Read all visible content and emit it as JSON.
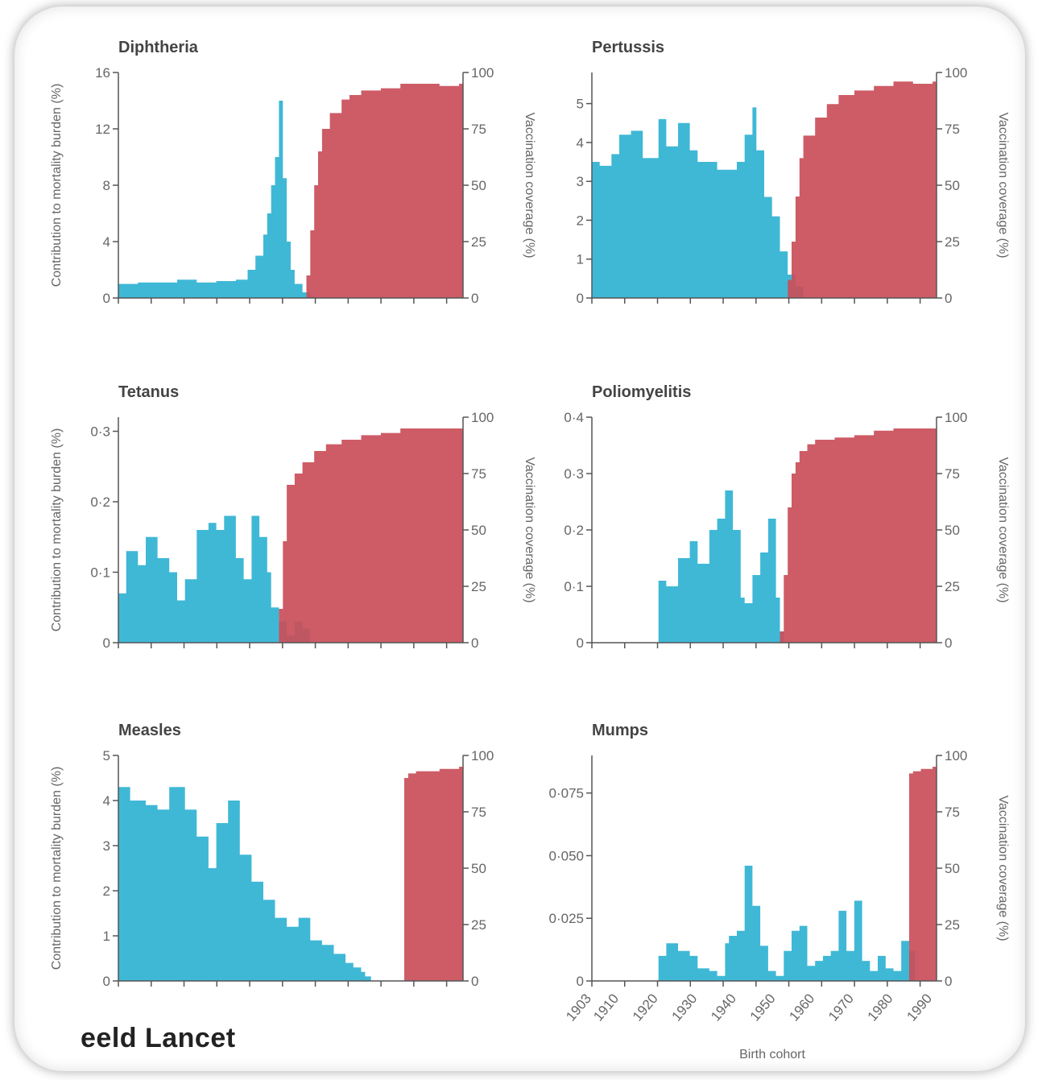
{
  "source_mark": "eeld Lancet",
  "chart_data": [
    {
      "type": "bar",
      "title": "Diphtheria",
      "ylabel_left": "Contribution to mortality burden (%)",
      "ylabel_right": "Vaccination coverage (%)",
      "ylim_left": [
        0,
        16
      ],
      "yticks_left": [
        "0",
        "4",
        "8",
        "12",
        "16"
      ],
      "ylim_right": [
        0,
        100
      ],
      "yticks_right": [
        "0",
        "25",
        "50",
        "75",
        "100"
      ],
      "series": [
        {
          "name": "Contribution to mortality burden",
          "color": "#3fb8d6",
          "x": [
            1903,
            1908,
            1913,
            1918,
            1923,
            1928,
            1933,
            1936,
            1938,
            1940,
            1941,
            1942,
            1943,
            1944,
            1945,
            1946,
            1947,
            1948,
            1950,
            1952,
            1953
          ],
          "values": [
            1.0,
            1.1,
            1.1,
            1.3,
            1.1,
            1.2,
            1.3,
            2.0,
            3.0,
            4.5,
            6.0,
            8.0,
            10.0,
            14.0,
            8.5,
            4.0,
            2.0,
            1.0,
            0.4,
            0.1,
            0.0
          ]
        },
        {
          "name": "Vaccination coverage",
          "color": "#c9505a",
          "x": [
            1951,
            1952,
            1953,
            1954,
            1955,
            1957,
            1960,
            1962,
            1965,
            1970,
            1975,
            1980,
            1985,
            1990
          ],
          "values": [
            10,
            30,
            50,
            65,
            75,
            82,
            88,
            90,
            92,
            93,
            95,
            95,
            94,
            95
          ]
        }
      ]
    },
    {
      "type": "bar",
      "title": "Pertussis",
      "ylabel_right": "Vaccination coverage (%)",
      "ylim_left": [
        0,
        5.8
      ],
      "yticks_left": [
        "0",
        "1",
        "2",
        "3",
        "4",
        "5"
      ],
      "ylim_right": [
        0,
        100
      ],
      "yticks_right": [
        "0",
        "25",
        "50",
        "75",
        "100"
      ],
      "series": [
        {
          "name": "Contribution to mortality burden",
          "color": "#3fb8d6",
          "x": [
            1903,
            1905,
            1908,
            1910,
            1913,
            1916,
            1920,
            1922,
            1925,
            1928,
            1930,
            1935,
            1940,
            1942,
            1944,
            1945,
            1947,
            1949,
            1951,
            1953,
            1955,
            1957
          ],
          "values": [
            3.5,
            3.4,
            3.7,
            4.2,
            4.3,
            3.6,
            4.6,
            3.9,
            4.5,
            3.8,
            3.5,
            3.3,
            3.5,
            4.2,
            4.9,
            3.8,
            2.6,
            2.1,
            1.2,
            0.6,
            0.3,
            0.0
          ]
        },
        {
          "name": "Vaccination coverage",
          "color": "#c9505a",
          "x": [
            1953,
            1954,
            1955,
            1956,
            1957,
            1960,
            1963,
            1966,
            1970,
            1975,
            1980,
            1985,
            1990
          ],
          "values": [
            8,
            25,
            45,
            62,
            72,
            80,
            86,
            90,
            92,
            94,
            96,
            95,
            96
          ]
        }
      ]
    },
    {
      "type": "bar",
      "title": "Tetanus",
      "ylabel_left": "Contribution to mortality burden (%)",
      "ylabel_right": "Vaccination coverage (%)",
      "ylim_left": [
        0,
        0.32
      ],
      "yticks_left": [
        "0",
        "0·1",
        "0·2",
        "0·3"
      ],
      "ylim_right": [
        0,
        100
      ],
      "yticks_right": [
        "0",
        "25",
        "50",
        "75",
        "100"
      ],
      "series": [
        {
          "name": "Contribution to mortality burden",
          "color": "#3fb8d6",
          "x": [
            1903,
            1905,
            1908,
            1910,
            1913,
            1916,
            1918,
            1920,
            1923,
            1926,
            1928,
            1930,
            1933,
            1935,
            1937,
            1939,
            1941,
            1942,
            1944,
            1946,
            1948,
            1950,
            1952,
            1953
          ],
          "values": [
            0.07,
            0.13,
            0.11,
            0.15,
            0.12,
            0.1,
            0.06,
            0.09,
            0.16,
            0.17,
            0.16,
            0.18,
            0.12,
            0.09,
            0.18,
            0.15,
            0.1,
            0.05,
            0.03,
            0.01,
            0.03,
            0.02,
            0.0,
            0.0
          ]
        },
        {
          "name": "Vaccination coverage",
          "color": "#c9505a",
          "x": [
            1944,
            1945,
            1946,
            1948,
            1950,
            1953,
            1956,
            1960,
            1965,
            1970,
            1975,
            1980,
            1985,
            1990
          ],
          "values": [
            15,
            45,
            70,
            75,
            80,
            85,
            88,
            90,
            92,
            93,
            95,
            95,
            95,
            95
          ]
        }
      ]
    },
    {
      "type": "bar",
      "title": "Poliomyelitis",
      "ylabel_right": "Vaccination coverage (%)",
      "ylim_left": [
        0,
        0.4
      ],
      "yticks_left": [
        "0",
        "0·1",
        "0·2",
        "0·3",
        "0·4"
      ],
      "ylim_right": [
        0,
        100
      ],
      "yticks_right": [
        "0",
        "25",
        "50",
        "75",
        "100"
      ],
      "series": [
        {
          "name": "Contribution to mortality burden",
          "color": "#3fb8d6",
          "x": [
            1903,
            1910,
            1918,
            1920,
            1922,
            1925,
            1928,
            1930,
            1933,
            1935,
            1937,
            1939,
            1941,
            1942,
            1944,
            1946,
            1948,
            1950,
            1951,
            1952
          ],
          "values": [
            0.0,
            0.0,
            0.0,
            0.11,
            0.1,
            0.15,
            0.18,
            0.14,
            0.2,
            0.22,
            0.27,
            0.2,
            0.08,
            0.07,
            0.12,
            0.16,
            0.22,
            0.08,
            0.02,
            0.0
          ]
        },
        {
          "name": "Vaccination coverage",
          "color": "#c9505a",
          "x": [
            1951,
            1952,
            1953,
            1954,
            1955,
            1956,
            1958,
            1960,
            1965,
            1970,
            1975,
            1980,
            1985,
            1990
          ],
          "values": [
            5,
            30,
            60,
            75,
            80,
            85,
            88,
            90,
            91,
            92,
            94,
            95,
            95,
            95
          ]
        }
      ]
    },
    {
      "type": "bar",
      "title": "Measles",
      "ylabel_left": "Contribution to mortality burden (%)",
      "ylim_left": [
        0,
        5
      ],
      "yticks_left": [
        "0",
        "1",
        "2",
        "3",
        "4",
        "5"
      ],
      "ylim_right": [
        0,
        100
      ],
      "yticks_right": [
        "0",
        "25",
        "50",
        "75",
        "100"
      ],
      "series": [
        {
          "name": "Contribution to mortality burden",
          "color": "#3fb8d6",
          "x": [
            1903,
            1906,
            1910,
            1913,
            1916,
            1920,
            1923,
            1926,
            1928,
            1931,
            1934,
            1937,
            1940,
            1943,
            1946,
            1949,
            1952,
            1955,
            1958,
            1961,
            1963,
            1965,
            1966
          ],
          "values": [
            4.3,
            4.0,
            3.9,
            3.8,
            4.3,
            3.8,
            3.2,
            2.5,
            3.5,
            4.0,
            2.8,
            2.2,
            1.8,
            1.4,
            1.2,
            1.4,
            0.9,
            0.8,
            0.6,
            0.4,
            0.3,
            0.2,
            0.1
          ]
        },
        {
          "name": "Vaccination coverage",
          "color": "#c9505a",
          "x": [
            1976,
            1977,
            1979,
            1982,
            1985,
            1988,
            1990
          ],
          "values": [
            90,
            92,
            93,
            93,
            94,
            94,
            95
          ]
        }
      ]
    },
    {
      "type": "bar",
      "title": "Mumps",
      "xlabel": "Birth cohort",
      "xticks": [
        "1903",
        "1910",
        "1920",
        "1930",
        "1940",
        "1950",
        "1960",
        "1970",
        "1980",
        "1990"
      ],
      "ylabel_right": "Vaccination coverage (%)",
      "ylim_left": [
        0,
        0.09
      ],
      "yticks_left": [
        "0",
        "0·025",
        "0·050",
        "0·075"
      ],
      "ylim_right": [
        0,
        100
      ],
      "yticks_right": [
        "0",
        "25",
        "50",
        "75",
        "100"
      ],
      "series": [
        {
          "name": "Contribution to mortality burden",
          "color": "#3fb8d6",
          "x": [
            1903,
            1910,
            1918,
            1920,
            1922,
            1925,
            1928,
            1930,
            1933,
            1935,
            1937,
            1938,
            1940,
            1942,
            1944,
            1946,
            1948,
            1950,
            1952,
            1954,
            1956,
            1958,
            1960,
            1962,
            1964,
            1966,
            1968,
            1970,
            1972,
            1974,
            1976,
            1978,
            1980,
            1982,
            1984
          ],
          "values": [
            0.0,
            0.0,
            0.0,
            0.01,
            0.015,
            0.012,
            0.01,
            0.005,
            0.004,
            0.002,
            0.015,
            0.018,
            0.02,
            0.046,
            0.03,
            0.014,
            0.004,
            0.002,
            0.012,
            0.02,
            0.022,
            0.006,
            0.008,
            0.01,
            0.012,
            0.028,
            0.012,
            0.032,
            0.008,
            0.004,
            0.01,
            0.005,
            0.004,
            0.016,
            0.012
          ]
        },
        {
          "name": "Vaccination coverage",
          "color": "#c9505a",
          "x": [
            1984,
            1985,
            1987,
            1990
          ],
          "values": [
            92,
            93,
            94,
            95
          ]
        }
      ]
    }
  ]
}
